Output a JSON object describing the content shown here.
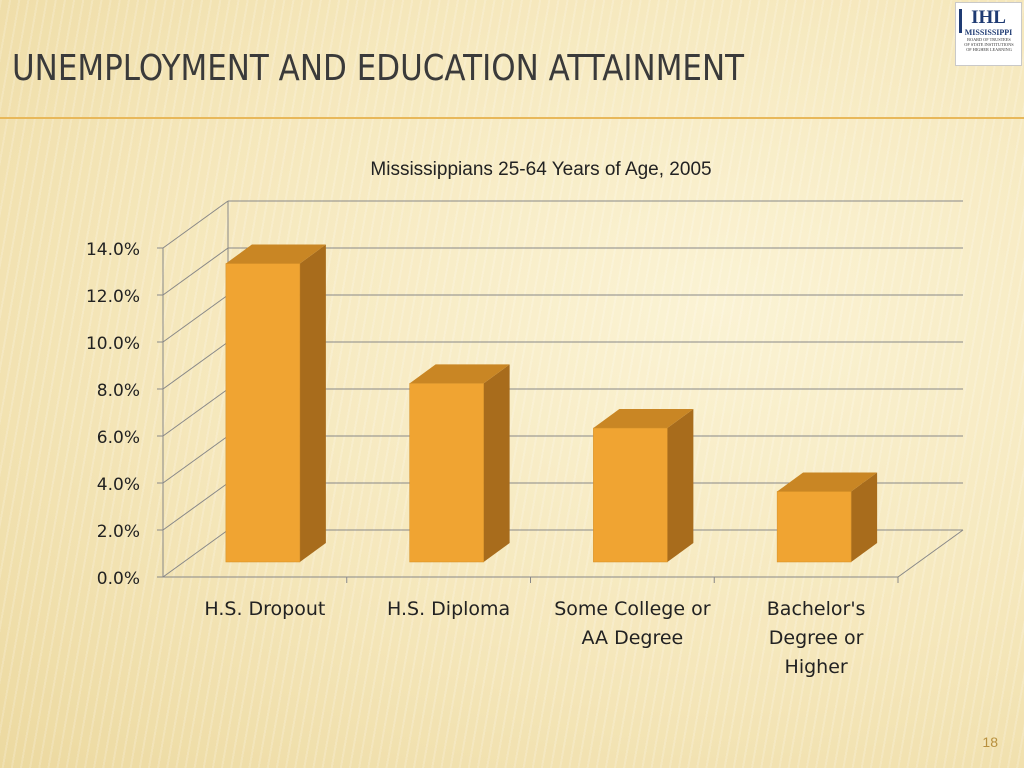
{
  "slide": {
    "title": "UNEMPLOYMENT AND EDUCATION ATTAINMENT",
    "page_number": "18",
    "logo": {
      "mark": "IHL",
      "name": "MISSISSIPPI",
      "subtitle_lines": [
        "BOARD OF TRUSTEES",
        "OF STATE INSTITUTIONS",
        "OF HIGHER LEARNING"
      ]
    }
  },
  "colors": {
    "bar_front": "#f0a432",
    "bar_side": "#a86c1c",
    "bar_top": "#c98624",
    "grid": "#888888",
    "text": "#222222"
  },
  "chart_data": {
    "type": "bar",
    "title": "Mississippians 25-64 Years of Age, 2005",
    "categories": [
      "H.S. Dropout",
      "H.S. Diploma",
      "Some College or AA Degree",
      "Bachelor's Degree or Higher"
    ],
    "category_lines": [
      [
        "H.S. Dropout"
      ],
      [
        "H.S. Diploma"
      ],
      [
        "Some College or",
        "AA Degree"
      ],
      [
        "Bachelor's",
        "Degree or",
        "Higher"
      ]
    ],
    "values": [
      12.7,
      7.6,
      5.7,
      3.0
    ],
    "ylim": [
      0,
      14
    ],
    "yticks": [
      0,
      2,
      4,
      6,
      8,
      10,
      12,
      14
    ],
    "ytick_labels": [
      "0.0%",
      "2.0%",
      "4.0%",
      "6.0%",
      "8.0%",
      "10.0%",
      "12.0%",
      "14.0%"
    ],
    "xlabel": "",
    "ylabel": "",
    "grid": true,
    "three_d": true
  }
}
